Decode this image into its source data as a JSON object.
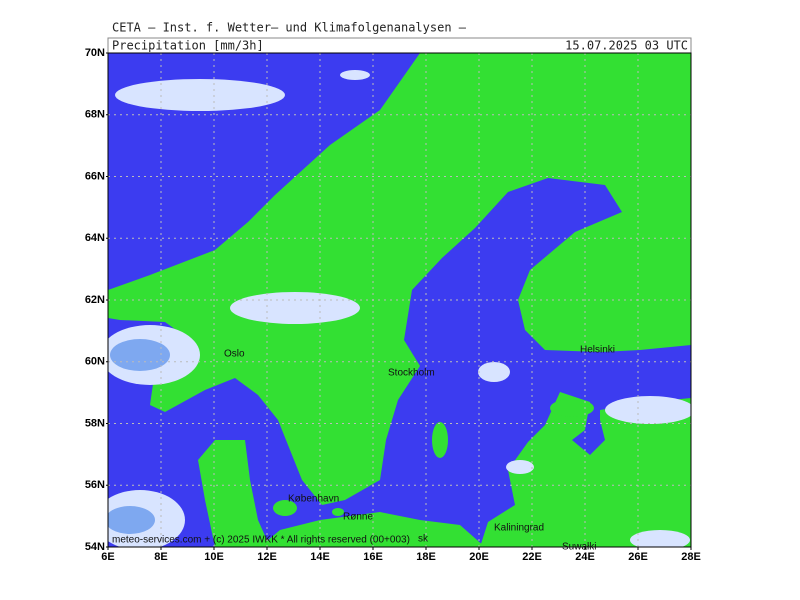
{
  "header": {
    "title": "CETA – Inst. f. Wetter– und Klimafolgenanalysen –",
    "field": "Precipitation [mm/3h]",
    "time": "15.07.2025 03 UTC"
  },
  "axes": {
    "lat_labels": [
      "70N",
      "68N",
      "66N",
      "64N",
      "62N",
      "60N",
      "58N",
      "56N",
      "54N"
    ],
    "lon_labels": [
      "6E",
      "8E",
      "10E",
      "12E",
      "14E",
      "16E",
      "18E",
      "20E",
      "22E",
      "24E",
      "26E",
      "28E"
    ]
  },
  "places": [
    {
      "name": "Oslo"
    },
    {
      "name": "Stockholm"
    },
    {
      "name": "Helsinki"
    },
    {
      "name": "København"
    },
    {
      "name": "Rønne"
    },
    {
      "name": "Kaliningrad"
    },
    {
      "name": "Suwałki"
    },
    {
      "name": "sk"
    }
  ],
  "footer": "meteo-services.com + (c) 2025 IWKK * All rights reserved (00+003)"
}
